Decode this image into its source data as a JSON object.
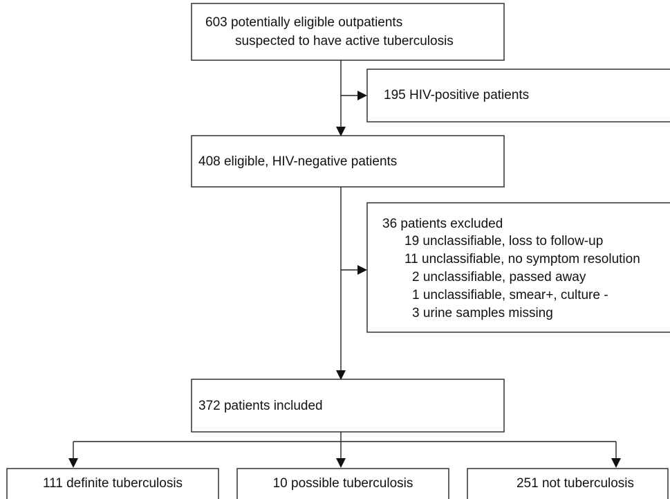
{
  "nodes": [
    {
      "lines": [
        "603 potentially eligible outpatients",
        "suspected to have active tuberculosis"
      ]
    },
    {
      "lines": [
        "195 HIV-positive patients"
      ]
    },
    {
      "lines": [
        "408 eligible, HIV-negative patients"
      ]
    },
    {
      "lines": [
        "36 patients excluded",
        "19 unclassifiable, loss to follow-up",
        "11 unclassifiable, no symptom resolution",
        "2 unclassifiable, passed away",
        "1 unclassifiable, smear+, culture -",
        "3 urine samples missing"
      ]
    },
    {
      "lines": [
        "372 patients included"
      ]
    },
    {
      "lines": [
        "111 definite tuberculosis"
      ]
    },
    {
      "lines": [
        "10 possible tuberculosis"
      ]
    },
    {
      "lines": [
        "251 not tuberculosis"
      ]
    }
  ]
}
